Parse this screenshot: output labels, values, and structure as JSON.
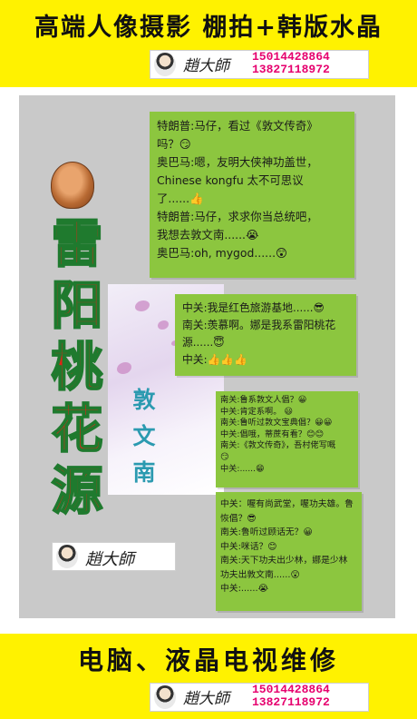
{
  "header": {
    "title": "高端人像摄影 棚拍+韩版水晶",
    "signature": "趙大師",
    "phones": [
      "15014428864",
      "13827118972"
    ]
  },
  "poster": {
    "main_title_chars": [
      "雷",
      "阳",
      "桃",
      "花",
      "源"
    ],
    "vertical_chars": [
      "敦",
      "文",
      "南"
    ],
    "signature": "趙大師",
    "chat1": [
      "特朗普:马仔，看过《敦文传奇》",
      "吗？😏",
      "奥巴马:嗯，友明大侠神功盖世，",
      "Chinese kongfu 太不可思议",
      "了......👍",
      "特朗普:马仔，求求你当总统吧，",
      "我想去敦文南......😭",
      "奥巴马:oh, mygod......😲"
    ],
    "chat2": [
      "中关:我是红色旅游基地......😎",
      "南关:羡慕啊。娜是我系雷阳桃花",
      "源......😇",
      "中关:👍👍👍"
    ],
    "chat3": [
      "南关:鲁系敦文人倡？😀",
      "中关:肯定系啊。 😃",
      "南关:鲁听过敦文宝典倡？😀😀",
      "中关:倡哦，蒂蔗有看？😊😊",
      "南关:《敦文传奇》，吾村佬写嘅",
      "😏",
      "中关:......😁"
    ],
    "chat4": [
      "中关：喔有尚武堂，喔功夫雄。鲁",
      "恢倡？😎",
      "南关:鲁听过顾话无？😀",
      "中关:咪话？😊",
      "南关:天下功夫出少林，娜是少林",
      "功夫出敦文南......😲",
      "中关:......😭"
    ]
  },
  "footer": {
    "title": "电脑、液晶电视维修",
    "signature": "趙大師",
    "phones": [
      "15014428864",
      "13827118972"
    ]
  },
  "colors": {
    "band": "#fff200",
    "panel": "#c9c9c9",
    "bubble": "#8cc63f",
    "phone": "#e6006e",
    "title_red": "#e02216",
    "title_outline": "#1f7a2e",
    "vertical_text": "#2b9ab0"
  }
}
